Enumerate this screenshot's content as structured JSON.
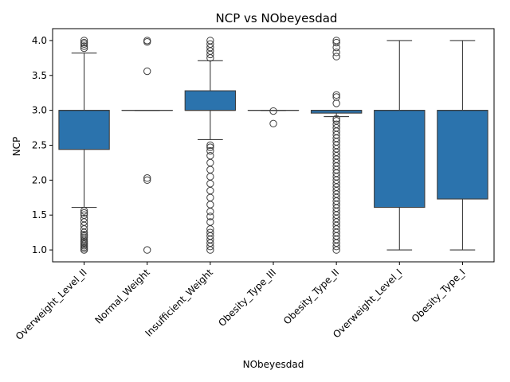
{
  "chart_data": {
    "type": "box",
    "title": "NCP vs NObeyesdad",
    "xlabel": "NObeyesdad",
    "ylabel": "NCP",
    "ylim": [
      0.83,
      4.17
    ],
    "yticks": [
      1.0,
      1.5,
      2.0,
      2.5,
      3.0,
      3.5,
      4.0
    ],
    "ytick_labels": [
      "1.0",
      "1.5",
      "2.0",
      "2.5",
      "3.0",
      "3.5",
      "4.0"
    ],
    "box_color": "#2b73ad",
    "categories": [
      "Overweight_Level_II",
      "Normal_Weight",
      "Insufficient_Weight",
      "Obesity_Type_III",
      "Obesity_Type_II",
      "Overweight_Level_I",
      "Obesity_Type_I"
    ],
    "boxes": [
      {
        "q1": 2.44,
        "median": 3.0,
        "q3": 3.0,
        "whisker_low": 1.61,
        "whisker_high": 3.82,
        "outliers": [
          1.0,
          1.02,
          1.04,
          1.06,
          1.08,
          1.1,
          1.12,
          1.15,
          1.18,
          1.2,
          1.22,
          1.25,
          1.3,
          1.35,
          1.4,
          1.45,
          1.5,
          1.53,
          1.56,
          3.89,
          3.92,
          3.95,
          3.97,
          4.0
        ]
      },
      {
        "q1": 3.0,
        "median": 3.0,
        "q3": 3.0,
        "whisker_low": 3.0,
        "whisker_high": 3.0,
        "outliers": [
          1.0,
          2.0,
          2.03,
          3.56,
          3.98,
          4.0
        ]
      },
      {
        "q1": 3.0,
        "median": 3.0,
        "q3": 3.28,
        "whisker_low": 2.58,
        "whisker_high": 3.71,
        "outliers": [
          1.0,
          1.05,
          1.1,
          1.15,
          1.2,
          1.25,
          1.3,
          1.4,
          1.48,
          1.55,
          1.65,
          1.75,
          1.85,
          1.95,
          2.05,
          2.15,
          2.25,
          2.35,
          2.42,
          2.47,
          2.5,
          3.75,
          3.8,
          3.85,
          3.9,
          3.95,
          4.0
        ]
      },
      {
        "q1": 3.0,
        "median": 3.0,
        "q3": 3.0,
        "whisker_low": 3.0,
        "whisker_high": 3.0,
        "outliers": [
          2.81,
          2.99
        ]
      },
      {
        "q1": 2.96,
        "median": 3.0,
        "q3": 3.0,
        "whisker_low": 2.91,
        "whisker_high": 3.0,
        "outliers": [
          1.0,
          1.05,
          1.1,
          1.15,
          1.2,
          1.25,
          1.3,
          1.35,
          1.4,
          1.45,
          1.5,
          1.55,
          1.6,
          1.65,
          1.7,
          1.75,
          1.8,
          1.85,
          1.9,
          1.95,
          2.0,
          2.05,
          2.1,
          2.15,
          2.2,
          2.25,
          2.3,
          2.35,
          2.4,
          2.45,
          2.5,
          2.55,
          2.6,
          2.65,
          2.7,
          2.75,
          2.8,
          2.85,
          2.88,
          3.1,
          3.19,
          3.22,
          3.77,
          3.83,
          3.9,
          3.97,
          4.0
        ]
      },
      {
        "q1": 1.61,
        "median": 3.0,
        "q3": 3.0,
        "whisker_low": 1.0,
        "whisker_high": 4.0,
        "outliers": []
      },
      {
        "q1": 1.73,
        "median": 3.0,
        "q3": 3.0,
        "whisker_low": 1.0,
        "whisker_high": 4.0,
        "outliers": []
      }
    ]
  }
}
